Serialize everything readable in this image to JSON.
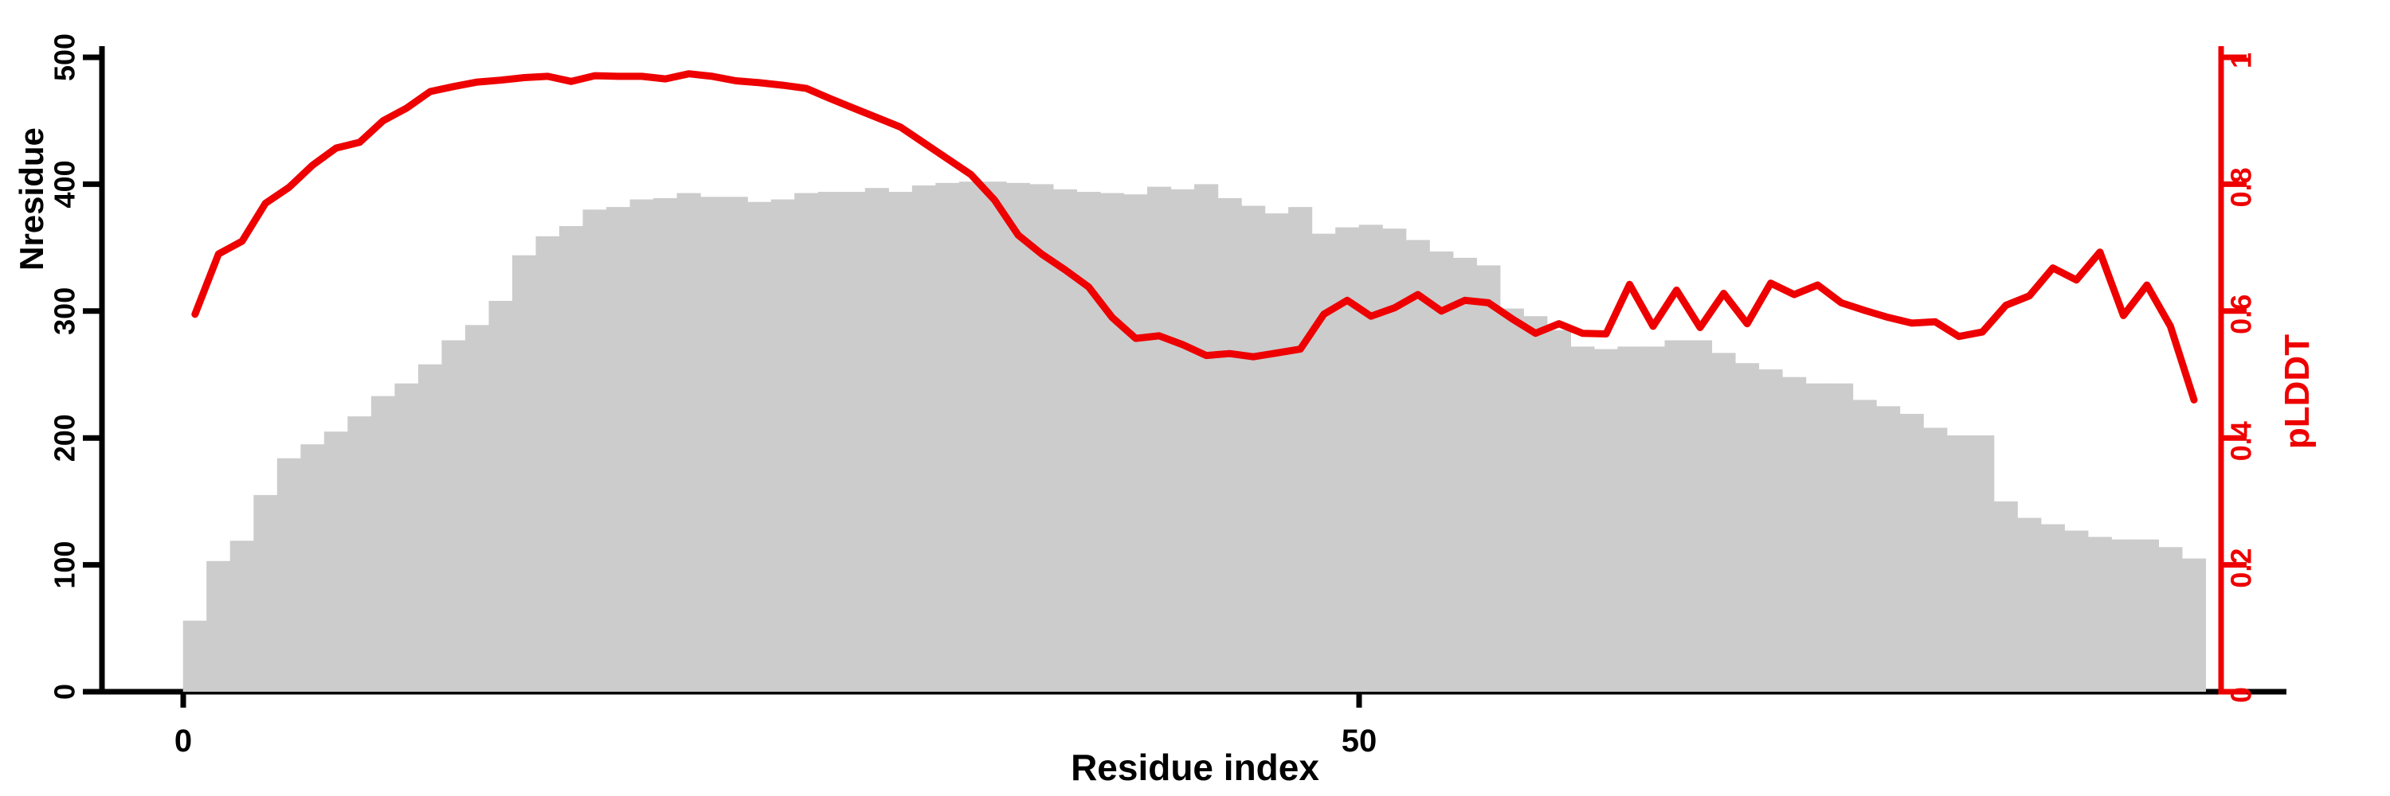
{
  "figure": {
    "background": "#ffffff",
    "kind": "per-residue MSA depth and predicted confidence profile"
  },
  "chart_data": {
    "type": "combo",
    "title": "",
    "xlabel": "Residue index",
    "ylabel_left": "Nresidue",
    "ylabel_right": "pLDDT",
    "x_range": [
      0,
      86
    ],
    "y_left_range": [
      0,
      500
    ],
    "y_right_range": [
      0,
      1
    ],
    "grid": false,
    "legend": false,
    "x_ticks": {
      "values": [
        0,
        50
      ],
      "labels": [
        "0",
        "50"
      ]
    },
    "y_left_ticks": {
      "values": [
        0,
        100,
        200,
        300,
        400,
        500
      ],
      "labels": [
        "0",
        "100",
        "200",
        "300",
        "400",
        "500"
      ]
    },
    "y_right_ticks": {
      "values": [
        0,
        0.2,
        0.4,
        0.6,
        0.8,
        1
      ],
      "labels": [
        "0",
        "0.2",
        "0.4",
        "0.6",
        "0.8",
        "1"
      ]
    },
    "colors": {
      "bar": "#cccccc",
      "line": "#ee0000",
      "axis": "#000000"
    },
    "series": [
      {
        "name": "Nresidue",
        "type": "bar",
        "axis": "left",
        "color": "#cccccc",
        "values": [
          56,
          103,
          119,
          155,
          184,
          195,
          205,
          217,
          233,
          243,
          258,
          277,
          289,
          308,
          344,
          359,
          367,
          380,
          382,
          388,
          389,
          393,
          390,
          390,
          386,
          388,
          393,
          394,
          394,
          397,
          394,
          399,
          401,
          402,
          402,
          401,
          400,
          396,
          394,
          393,
          392,
          398,
          396,
          400,
          389,
          383,
          377,
          382,
          361,
          366,
          368,
          365,
          356,
          347,
          342,
          336,
          302,
          296,
          285,
          272,
          270,
          272,
          272,
          277,
          277,
          267,
          259,
          254,
          248,
          243,
          243,
          230,
          225,
          219,
          208,
          202,
          202,
          150,
          137,
          132,
          127,
          122,
          120,
          120,
          114,
          105
        ]
      },
      {
        "name": "pLDDT",
        "type": "line",
        "axis": "right",
        "color": "#ee0000",
        "values": [
          0.595,
          0.69,
          0.71,
          0.77,
          0.795,
          0.83,
          0.857,
          0.866,
          0.9,
          0.92,
          0.946,
          0.954,
          0.961,
          0.964,
          0.968,
          0.97,
          0.962,
          0.971,
          0.97,
          0.97,
          0.966,
          0.974,
          0.97,
          0.963,
          0.96,
          0.956,
          0.951,
          0.935,
          0.92,
          0.905,
          0.89,
          0.865,
          0.84,
          0.815,
          0.775,
          0.72,
          0.69,
          0.665,
          0.638,
          0.59,
          0.557,
          0.561,
          0.547,
          0.53,
          0.533,
          0.528,
          0.534,
          0.54,
          0.595,
          0.617,
          0.592,
          0.605,
          0.626,
          0.6,
          0.617,
          0.613,
          0.588,
          0.565,
          0.58,
          0.565,
          0.564,
          0.642,
          0.576,
          0.633,
          0.574,
          0.628,
          0.58,
          0.644,
          0.626,
          0.641,
          0.613,
          0.601,
          0.59,
          0.581,
          0.583,
          0.56,
          0.567,
          0.609,
          0.624,
          0.668,
          0.649,
          0.693,
          0.593,
          0.641,
          0.576,
          0.46
        ]
      }
    ]
  }
}
